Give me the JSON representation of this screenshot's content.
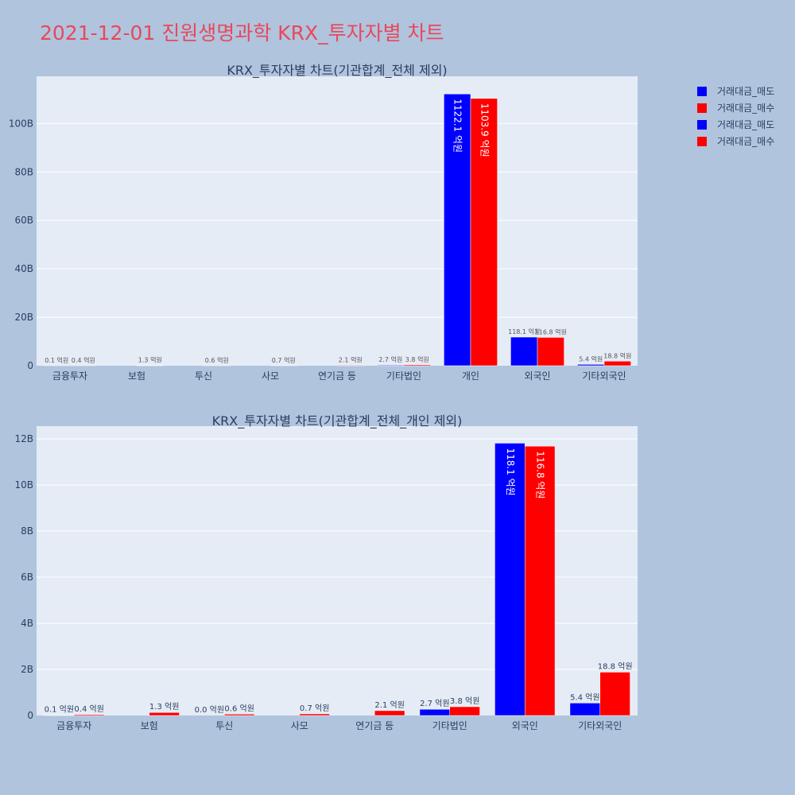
{
  "page": {
    "title": "2021-12-01 진원생명과학 KRX_투자자별 차트"
  },
  "legend": {
    "items": [
      {
        "label": "거래대금_매도",
        "color": "#0000ff"
      },
      {
        "label": "거래대금_매수",
        "color": "#ff0000"
      },
      {
        "label": "거래대금_매도",
        "color": "#0000ff"
      },
      {
        "label": "거래대금_매수",
        "color": "#ff0000"
      }
    ]
  },
  "colors": {
    "sell": "#0000ff",
    "buy": "#ff0000",
    "plot_bg": "#e5ecf6",
    "page_bg": "#b0c4de"
  },
  "chart_data": [
    {
      "type": "bar",
      "title": "KRX_투자자별 차트(기관합계_전체 제외)",
      "categories": [
        "금융투자",
        "보험",
        "투신",
        "사모",
        "연기금 등",
        "기타법인",
        "개인",
        "외국인",
        "기타외국인"
      ],
      "series": [
        {
          "name": "거래대금_매도",
          "values": [
            0.01,
            0,
            0,
            0,
            0,
            0.27,
            112.21,
            11.81,
            0.54
          ],
          "labels": [
            "0.1 억원",
            "",
            "",
            "",
            "",
            "2.7 억원",
            "1122.1 억원",
            "118.1 억원",
            "5.4 억원"
          ]
        },
        {
          "name": "거래대금_매수",
          "values": [
            0.04,
            0.13,
            0.06,
            0.07,
            0.21,
            0.38,
            110.39,
            11.68,
            1.88
          ],
          "labels": [
            "0.4 억원",
            "1.3 억원",
            "0.6 억원",
            "0.7 억원",
            "2.1 억원",
            "3.8 억원",
            "1103.9 억원",
            "116.8 억원",
            "18.8 억원"
          ]
        }
      ],
      "unit": "B",
      "yticks": [
        0,
        20,
        40,
        60,
        80,
        100
      ],
      "ytick_labels": [
        "0",
        "20B",
        "40B",
        "60B",
        "80B",
        "100B"
      ],
      "ylim": [
        0,
        119.5
      ],
      "grid": true
    },
    {
      "type": "bar",
      "title": "KRX_투자자별 차트(기관합계_전체_개인 제외)",
      "categories": [
        "금융투자",
        "보험",
        "투신",
        "사모",
        "연기금 등",
        "기타법인",
        "외국인",
        "기타외국인"
      ],
      "series": [
        {
          "name": "거래대금_매도",
          "values": [
            0.01,
            0,
            0.0,
            0,
            0,
            0.27,
            11.81,
            0.54
          ],
          "labels": [
            "0.1 억원",
            "",
            "0.0 억원",
            "",
            "",
            "2.7 억원",
            "118.1 억원",
            "5.4 억원"
          ]
        },
        {
          "name": "거래대금_매수",
          "values": [
            0.04,
            0.13,
            0.06,
            0.07,
            0.21,
            0.38,
            11.68,
            1.88
          ],
          "labels": [
            "0.4 억원",
            "1.3 억원",
            "0.6 억원",
            "0.7 억원",
            "2.1 억원",
            "3.8 억원",
            "116.8 억원",
            "18.8 억원"
          ]
        }
      ],
      "unit": "B",
      "yticks": [
        0,
        2,
        4,
        6,
        8,
        10,
        12
      ],
      "ytick_labels": [
        "0",
        "2B",
        "4B",
        "6B",
        "8B",
        "10B",
        "12B"
      ],
      "ylim": [
        0,
        12.55
      ],
      "grid": true
    }
  ]
}
